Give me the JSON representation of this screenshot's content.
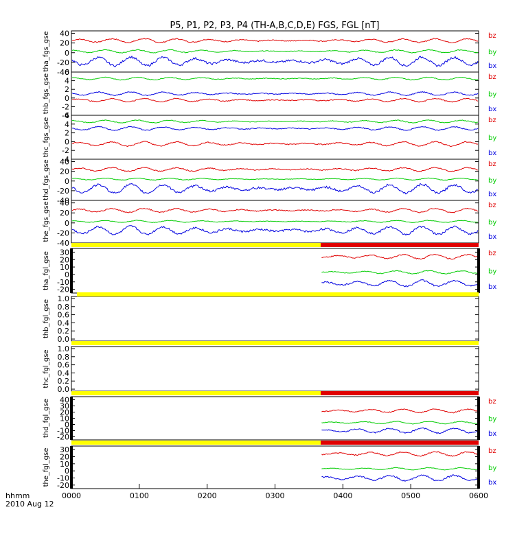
{
  "title": "P5, P1, P2, P3, P4 (TH-A,B,C,D,E) FGS, FGL [nT]",
  "time_axis": {
    "label_line1": "hhmm",
    "label_line2": "2010 Aug 12",
    "ticks": [
      "0000",
      "0100",
      "0200",
      "0300",
      "0400",
      "0500",
      "0600"
    ]
  },
  "colors": {
    "bz": "#e00000",
    "by": "#00cc00",
    "bx": "#0000e0",
    "fgs_bar": "#ffff00",
    "fgl_bar": "#e00000"
  },
  "chart_data": [
    {
      "type": "line",
      "ylabel": "tha_fgs_gse",
      "yticks": [
        "40",
        "20",
        "0",
        "-20",
        "-40"
      ],
      "ylim": [
        -40,
        45
      ],
      "legend": [
        "bz",
        "by",
        "bx"
      ],
      "series": [
        {
          "name": "bz",
          "level": 25,
          "amp": 4
        },
        {
          "name": "by",
          "level": 3,
          "amp": 3
        },
        {
          "name": "bx",
          "level": -18,
          "amp": 9
        }
      ]
    },
    {
      "type": "line",
      "ylabel": "thb_fgs_gse",
      "yticks": [
        "6",
        "4",
        "2",
        "0",
        "-2",
        "-4"
      ],
      "ylim": [
        -4,
        6
      ],
      "legend": [
        "bz",
        "by",
        "bx"
      ],
      "series": [
        {
          "name": "bz",
          "level": -0.5,
          "amp": 0.4
        },
        {
          "name": "by",
          "level": 4.5,
          "amp": 0.3
        },
        {
          "name": "bx",
          "level": 1.0,
          "amp": 0.4
        }
      ]
    },
    {
      "type": "line",
      "ylabel": "thc_fgs_gse",
      "yticks": [
        "6",
        "4",
        "2",
        "0",
        "-2",
        "-4"
      ],
      "ylim": [
        -4,
        6
      ],
      "legend": [
        "bz",
        "by",
        "bx"
      ],
      "series": [
        {
          "name": "bz",
          "level": -0.5,
          "amp": 0.5
        },
        {
          "name": "by",
          "level": 4.6,
          "amp": 0.3
        },
        {
          "name": "bx",
          "level": 3.0,
          "amp": 0.4
        }
      ]
    },
    {
      "type": "line",
      "ylabel": "thd_fgs_gse",
      "yticks": [
        "40",
        "20",
        "0",
        "-20",
        "-40"
      ],
      "ylim": [
        -40,
        45
      ],
      "legend": [
        "bz",
        "by",
        "bx"
      ],
      "series": [
        {
          "name": "bz",
          "level": 24,
          "amp": 4
        },
        {
          "name": "by",
          "level": 4,
          "amp": 2
        },
        {
          "name": "bx",
          "level": -16,
          "amp": 9
        }
      ]
    },
    {
      "type": "line",
      "ylabel": "the_fgs_gse",
      "yticks": [
        "40",
        "20",
        "0",
        "-20",
        "-40"
      ],
      "ylim": [
        -40,
        45
      ],
      "legend": [
        "bz",
        "by",
        "bx"
      ],
      "series": [
        {
          "name": "bz",
          "level": 25,
          "amp": 4
        },
        {
          "name": "by",
          "level": 3,
          "amp": 2
        },
        {
          "name": "bx",
          "level": -15,
          "amp": 8
        }
      ]
    },
    {
      "type": "line",
      "ylabel": "tha_fgl_gse",
      "yticks": [
        "30",
        "20",
        "10",
        "0",
        "-10",
        "-20"
      ],
      "ylim": [
        -25,
        35
      ],
      "legend": [
        "bz",
        "by",
        "bx"
      ],
      "data_start_hhmm": "0340",
      "series": [
        {
          "name": "bz",
          "level": 24,
          "amp": 3
        },
        {
          "name": "by",
          "level": 3,
          "amp": 2
        },
        {
          "name": "bx",
          "level": -12,
          "amp": 4
        }
      ]
    },
    {
      "type": "line",
      "ylabel": "thb_fgl_gse",
      "yticks": [
        "1.0",
        "0.8",
        "0.6",
        "0.4",
        "0.2",
        "0.0"
      ],
      "ylim": [
        -0.05,
        1.05
      ],
      "legend": [],
      "series": []
    },
    {
      "type": "line",
      "ylabel": "thc_fgl_gse",
      "yticks": [
        "1.0",
        "0.8",
        "0.6",
        "0.4",
        "0.2",
        "0.0"
      ],
      "ylim": [
        -0.05,
        1.05
      ],
      "legend": [],
      "series": []
    },
    {
      "type": "line",
      "ylabel": "thd_fgl_gse",
      "yticks": [
        "40",
        "30",
        "20",
        "10",
        "0",
        "-10",
        "-20"
      ],
      "ylim": [
        -25,
        45
      ],
      "legend": [
        "bz",
        "by",
        "bx"
      ],
      "data_start_hhmm": "0340",
      "series": [
        {
          "name": "bz",
          "level": 22,
          "amp": 3
        },
        {
          "name": "by",
          "level": 3,
          "amp": 2
        },
        {
          "name": "bx",
          "level": -10,
          "amp": 4
        }
      ]
    },
    {
      "type": "line",
      "ylabel": "the_fgl_gse",
      "yticks": [
        "30",
        "20",
        "10",
        "0",
        "-10",
        "-20"
      ],
      "ylim": [
        -25,
        35
      ],
      "legend": [
        "bz",
        "by",
        "bx"
      ],
      "data_start_hhmm": "0340",
      "series": [
        {
          "name": "bz",
          "level": 24,
          "amp": 3
        },
        {
          "name": "by",
          "level": 3,
          "amp": 1.5
        },
        {
          "name": "bx",
          "level": -10,
          "amp": 4
        }
      ]
    }
  ]
}
